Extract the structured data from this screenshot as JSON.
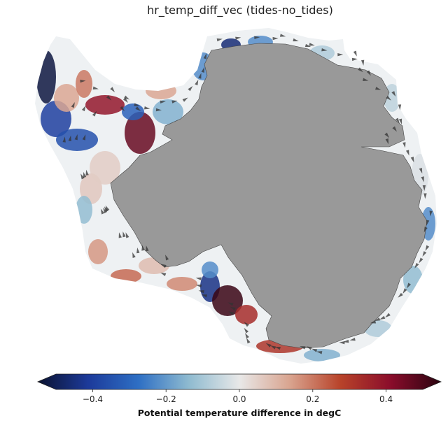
{
  "title": "hr_temp_diff_vec (tides-no_tides)",
  "colorbar": {
    "label": "Potential temperature difference in degC",
    "min": -0.5,
    "max": 0.5,
    "extend": "both",
    "ticks": [
      {
        "value": -0.4,
        "label": "−0.4"
      },
      {
        "value": -0.2,
        "label": "−0.2"
      },
      {
        "value": 0.0,
        "label": "0.0"
      },
      {
        "value": 0.2,
        "label": "0.2"
      },
      {
        "value": 0.4,
        "label": "0.4"
      }
    ],
    "colormap": [
      "#0b1230",
      "#1c3a9a",
      "#2e6fc4",
      "#8fbbd0",
      "#e8e8e8",
      "#d9a48f",
      "#b8432a",
      "#8a0d2b",
      "#2a0410"
    ]
  },
  "colors": {
    "land": "#999999",
    "background": "#ffffff",
    "arrows": "#333333"
  }
}
